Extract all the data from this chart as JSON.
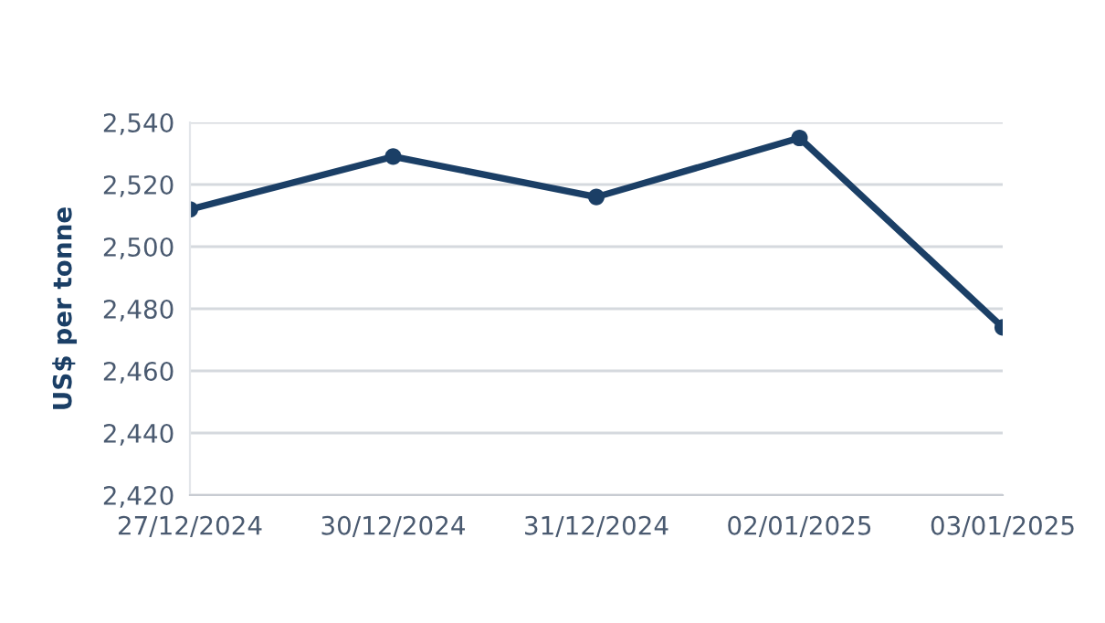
{
  "chart_data": {
    "type": "line",
    "ylabel": "US$ per tonne",
    "categories": [
      "27/12/2024",
      "30/12/2024",
      "31/12/2024",
      "02/01/2025",
      "03/01/2025"
    ],
    "series": [
      {
        "color": "#1b3f66",
        "values": [
          2512,
          2529,
          2516,
          2535,
          2474
        ]
      }
    ],
    "ylim": [
      2420,
      2540
    ],
    "yticks": [
      {
        "value": 2420,
        "label": "2,420"
      },
      {
        "value": 2440,
        "label": "2,440"
      },
      {
        "value": 2460,
        "label": "2,460"
      },
      {
        "value": 2480,
        "label": "2,480"
      },
      {
        "value": 2500,
        "label": "2,500"
      },
      {
        "value": 2520,
        "label": "2,520"
      },
      {
        "value": 2540,
        "label": "2,540"
      }
    ],
    "grid": "y",
    "marker": "circle",
    "line_style": "solid"
  }
}
